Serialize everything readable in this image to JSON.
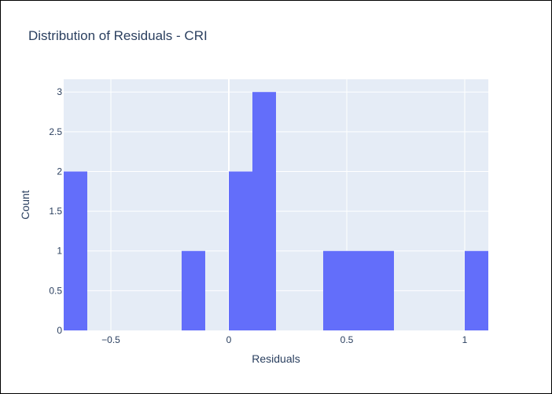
{
  "chart_data": {
    "type": "bar",
    "title": "Distribution of Residuals - CRI",
    "xlabel": "Residuals",
    "ylabel": "Count",
    "bin_width": 0.1,
    "bins": [
      {
        "x0": -0.7,
        "x1": -0.6,
        "count": 2
      },
      {
        "x0": -0.6,
        "x1": -0.5,
        "count": 0
      },
      {
        "x0": -0.5,
        "x1": -0.4,
        "count": 0
      },
      {
        "x0": -0.4,
        "x1": -0.3,
        "count": 0
      },
      {
        "x0": -0.3,
        "x1": -0.2,
        "count": 0
      },
      {
        "x0": -0.2,
        "x1": -0.1,
        "count": 1
      },
      {
        "x0": -0.1,
        "x1": 0.0,
        "count": 0
      },
      {
        "x0": 0.0,
        "x1": 0.1,
        "count": 2
      },
      {
        "x0": 0.1,
        "x1": 0.2,
        "count": 3
      },
      {
        "x0": 0.2,
        "x1": 0.3,
        "count": 0
      },
      {
        "x0": 0.3,
        "x1": 0.4,
        "count": 0
      },
      {
        "x0": 0.4,
        "x1": 0.5,
        "count": 1
      },
      {
        "x0": 0.5,
        "x1": 0.6,
        "count": 1
      },
      {
        "x0": 0.6,
        "x1": 0.7,
        "count": 1
      },
      {
        "x0": 0.7,
        "x1": 0.8,
        "count": 0
      },
      {
        "x0": 0.8,
        "x1": 0.9,
        "count": 0
      },
      {
        "x0": 0.9,
        "x1": 1.0,
        "count": 0
      },
      {
        "x0": 1.0,
        "x1": 1.1,
        "count": 1
      }
    ],
    "xlim": [
      -0.7,
      1.1
    ],
    "ylim": [
      0,
      3.16
    ],
    "x_ticks": [
      {
        "value": -0.5,
        "label": "−0.5"
      },
      {
        "value": 0,
        "label": "0"
      },
      {
        "value": 0.5,
        "label": "0.5"
      },
      {
        "value": 1,
        "label": "1"
      }
    ],
    "y_ticks": [
      {
        "value": 0,
        "label": "0"
      },
      {
        "value": 0.5,
        "label": "0.5"
      },
      {
        "value": 1,
        "label": "1"
      },
      {
        "value": 1.5,
        "label": "1.5"
      },
      {
        "value": 2,
        "label": "2"
      },
      {
        "value": 2.5,
        "label": "2.5"
      },
      {
        "value": 3,
        "label": "3"
      }
    ],
    "grid": true,
    "colors": {
      "bar": "#636efa",
      "plot_background": "#e5ecf6",
      "gridline": "#ffffff",
      "text": "#2a3f5f"
    }
  }
}
